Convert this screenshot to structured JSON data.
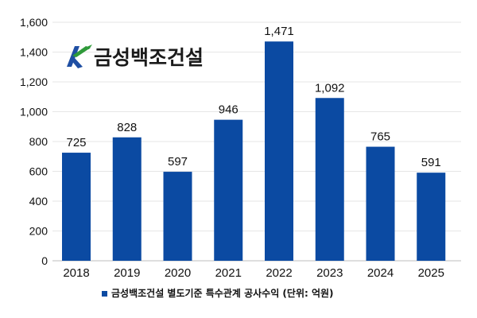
{
  "colors": {
    "bar": "#0b4aa2",
    "grid": "#e6e6e6",
    "logo_blue": "#1f4fa3",
    "logo_green": "#2f9a3a"
  },
  "logo": {
    "mark": "K",
    "text": "금성백조건설"
  },
  "chart_data": {
    "type": "bar",
    "categories": [
      "2018",
      "2019",
      "2020",
      "2021",
      "2022",
      "2023",
      "2024",
      "2025"
    ],
    "series": [
      {
        "name": "금성백조건설 별도기준 특수관계 공사수익 (단위: 억원)",
        "values": [
          725,
          828,
          597,
          946,
          1471,
          1092,
          765,
          591
        ]
      }
    ],
    "data_labels": [
      "725",
      "828",
      "597",
      "946",
      "1,471",
      "1,092",
      "765",
      "591"
    ],
    "yticks": [
      "0",
      "200",
      "400",
      "600",
      "800",
      "1,000",
      "1,200",
      "1,400",
      "1,600"
    ],
    "ylim": [
      0,
      1600
    ],
    "grid": true,
    "legend_position": "bottom-center"
  }
}
